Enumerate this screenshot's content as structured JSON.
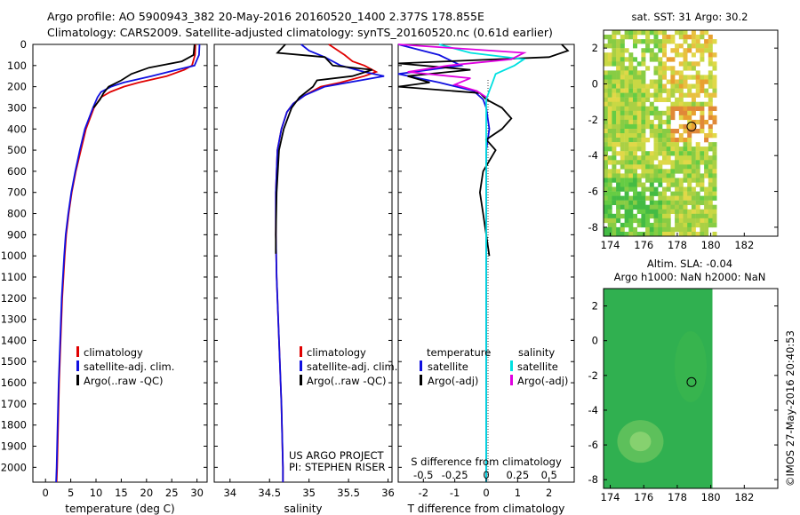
{
  "title_line1": "Argo profile: AO 5900943_382 20-May-2016 20160520_1400 2.377S 178.855E",
  "title_line2": "Climatology: CARS2009. Satellite-adjusted climatology: synTS_20160520.nc (0.61d earlier)",
  "watermark": "©IMOS 27-May-2016 20:40:53",
  "colors": {
    "climatology": "#e00000",
    "satellite": "#1010e0",
    "argo": "#000000",
    "sat_salinity": "#00e0e0",
    "argo_salinity": "#e000e0"
  },
  "depth_ticks": [
    0,
    100,
    200,
    300,
    400,
    500,
    600,
    700,
    800,
    900,
    1000,
    1100,
    1200,
    1300,
    1400,
    1500,
    1600,
    1700,
    1800,
    1900,
    2000
  ],
  "chart_data": [
    {
      "id": "temperature",
      "type": "line",
      "xlabel": "temperature (deg C)",
      "xticks": [
        0,
        5,
        10,
        15,
        20,
        25,
        30
      ],
      "xlim": [
        -2.5,
        32
      ],
      "ylim": [
        2070,
        0
      ],
      "legend": [
        "climatology",
        "satellite-adj. clim.",
        "Argo(..raw -QC)"
      ],
      "series": [
        {
          "name": "climatology",
          "color": "#e00000",
          "depth": [
            0,
            50,
            100,
            120,
            150,
            180,
            200,
            225,
            250,
            300,
            400,
            500,
            600,
            700,
            800,
            900,
            1000,
            1200,
            1400,
            1600,
            1800,
            2000,
            2070
          ],
          "values": [
            29.7,
            29.6,
            29.0,
            27.5,
            24.0,
            18.5,
            15.5,
            12.8,
            11.0,
            9.6,
            8.0,
            7.0,
            6.0,
            5.2,
            4.6,
            4.1,
            3.8,
            3.3,
            3.0,
            2.7,
            2.5,
            2.3,
            2.2
          ]
        },
        {
          "name": "satellite-adj. clim.",
          "color": "#1010e0",
          "depth": [
            0,
            50,
            100,
            120,
            150,
            180,
            200,
            225,
            250,
            300,
            400,
            500,
            600,
            700,
            800,
            900,
            1000,
            1200,
            1400,
            1600,
            1800,
            2000,
            2070
          ],
          "values": [
            30.5,
            30.4,
            29.5,
            26.0,
            21.0,
            15.5,
            13.0,
            11.0,
            10.3,
            9.4,
            7.8,
            6.8,
            5.9,
            5.1,
            4.5,
            4.0,
            3.7,
            3.2,
            2.9,
            2.6,
            2.4,
            2.2,
            2.1
          ]
        },
        {
          "name": "Argo(..raw -QC)",
          "color": "#000000",
          "depth": [
            0,
            50,
            80,
            110,
            140,
            170,
            200,
            230,
            260,
            300
          ],
          "values": [
            29.5,
            29.3,
            27.0,
            20.5,
            17.0,
            15.0,
            12.5,
            11.5,
            10.8,
            9.5
          ]
        }
      ]
    },
    {
      "id": "salinity",
      "type": "line",
      "xlabel": "salinity",
      "xticks": [
        34,
        34.5,
        35,
        35.5,
        36
      ],
      "xlim": [
        33.8,
        36.05
      ],
      "ylim": [
        2070,
        0
      ],
      "legend": [
        "climatology",
        "satellite-adj. clim.",
        "Argo(..raw -QC)"
      ],
      "annotation": [
        "US ARGO PROJECT",
        "PI: STEPHEN RISER"
      ],
      "series": [
        {
          "name": "climatology",
          "color": "#e00000",
          "depth": [
            0,
            50,
            80,
            100,
            130,
            150,
            180,
            200,
            240,
            280,
            320,
            400,
            500,
            700,
            900,
            1100,
            1400,
            1700,
            2000,
            2070
          ],
          "values": [
            35.25,
            35.45,
            35.55,
            35.7,
            35.85,
            35.7,
            35.4,
            35.15,
            34.95,
            34.8,
            34.72,
            34.65,
            34.6,
            34.58,
            34.58,
            34.59,
            34.62,
            34.65,
            34.67,
            34.67
          ]
        },
        {
          "name": "satellite-adj. clim.",
          "color": "#1010e0",
          "depth": [
            0,
            30,
            60,
            100,
            130,
            150,
            170,
            200,
            240,
            280,
            320,
            400,
            500,
            700,
            900,
            1100,
            1400,
            1700,
            2000,
            2070
          ],
          "values": [
            34.9,
            35.0,
            35.2,
            35.4,
            35.7,
            35.95,
            35.65,
            35.2,
            34.95,
            34.8,
            34.72,
            34.65,
            34.6,
            34.58,
            34.58,
            34.59,
            34.62,
            34.65,
            34.67,
            34.67
          ]
        },
        {
          "name": "Argo(..raw -QC)",
          "color": "#000000",
          "depth": [
            0,
            40,
            60,
            100,
            120,
            150,
            170,
            200,
            250,
            300,
            400,
            500,
            700,
            900,
            990
          ],
          "values": [
            34.7,
            34.6,
            35.2,
            35.3,
            35.8,
            35.55,
            35.1,
            35.05,
            34.88,
            34.78,
            34.68,
            34.62,
            34.59,
            34.58,
            34.58
          ]
        }
      ]
    },
    {
      "id": "difference",
      "type": "line",
      "xlabel": "T difference from climatology",
      "xticks": [
        -2,
        -1,
        0,
        1,
        2
      ],
      "xlim": [
        -2.8,
        2.8
      ],
      "top_label": "S difference from climatology",
      "top_ticks": [
        "-0.5",
        "-0.25",
        "0",
        "0.25",
        "0.5"
      ],
      "ylim": [
        2070,
        0
      ],
      "legend_headers": [
        "temperature",
        "salinity"
      ],
      "legend": [
        "satellite",
        "Argo(-adj)",
        "satellite",
        "Argo(-adj)"
      ],
      "series": [
        {
          "name": "satellite",
          "color": "#1010e0",
          "depth": [
            0,
            50,
            100,
            140,
            180,
            220,
            260,
            300,
            400,
            500,
            700,
            900,
            1200,
            1500,
            1800,
            2000,
            2070
          ],
          "values": [
            -2.8,
            -1.5,
            -0.8,
            -2.8,
            -1.5,
            -0.4,
            -0.1,
            0.0,
            0.1,
            0.0,
            0.0,
            0.0,
            0.0,
            0.0,
            0.0,
            0.0,
            0.0
          ]
        },
        {
          "name": "Argo(-adj)",
          "color": "#000000",
          "depth": [
            0,
            30,
            60,
            90,
            120,
            150,
            180,
            200,
            230,
            260,
            300,
            350,
            400,
            450,
            500,
            600,
            700,
            800,
            900,
            1000
          ],
          "values": [
            2.4,
            2.6,
            2.0,
            -2.8,
            -0.5,
            -2.5,
            -1.8,
            -2.8,
            -0.2,
            0.0,
            0.5,
            0.8,
            0.5,
            0.0,
            0.3,
            -0.1,
            -0.2,
            -0.1,
            0.0,
            0.1
          ]
        },
        {
          "name": "satellite",
          "color": "#00e0e0",
          "depth": [
            0,
            40,
            70,
            100,
            140,
            180,
            220,
            260,
            300,
            400,
            600,
            900,
            1200,
            1500,
            1800,
            2000,
            2070
          ],
          "values": [
            -1.5,
            -0.5,
            1.2,
            0.9,
            0.3,
            0.2,
            0.1,
            0.0,
            0.0,
            0.0,
            0.0,
            0.0,
            0.0,
            0.0,
            0.0,
            0.0,
            0.0
          ]
        },
        {
          "name": "Argo(-adj)",
          "color": "#e000e0",
          "depth": [
            0,
            40,
            70,
            100,
            130,
            160,
            190,
            220,
            250
          ],
          "values": [
            -2.8,
            1.2,
            0.8,
            -1.2,
            -2.5,
            -0.5,
            -1.0,
            -0.3,
            0.0
          ]
        }
      ]
    },
    {
      "id": "sst-map",
      "type": "heatmap",
      "title": "sat. SST: 31  Argo: 30.2",
      "xticks": [
        174,
        176,
        178,
        180,
        182
      ],
      "yticks": [
        2,
        0,
        -2,
        -4,
        -6,
        -8
      ],
      "xlim": [
        173.6,
        184
      ],
      "ylim": [
        -8.5,
        3.0
      ],
      "marker": [
        178.85,
        -2.38
      ]
    },
    {
      "id": "sla-map",
      "type": "heatmap",
      "title": "Altim. SLA: -0.04",
      "subtitle": "Argo h1000: NaN h2000: NaN",
      "xticks": [
        174,
        176,
        178,
        180,
        182
      ],
      "yticks": [
        2,
        0,
        -2,
        -4,
        -6,
        -8
      ],
      "xlim": [
        173.6,
        184
      ],
      "ylim": [
        -8.5,
        3.0
      ],
      "marker": [
        178.85,
        -2.38
      ]
    }
  ]
}
